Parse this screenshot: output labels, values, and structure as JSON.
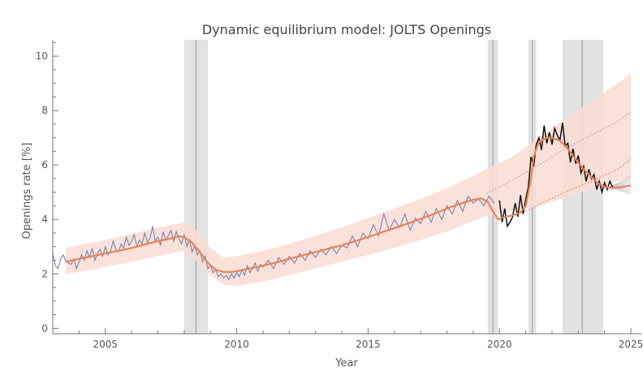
{
  "chart_data": {
    "type": "line",
    "title": "Dynamic equilibrium model: JOLTS Openings",
    "xlabel": "Year",
    "ylabel": "Openings rate [%]",
    "xlim": [
      2003.0,
      2025.4
    ],
    "ylim": [
      -0.2,
      10.6
    ],
    "x_ticks": [
      2005,
      2010,
      2015,
      2020,
      2025
    ],
    "y_ticks": [
      0,
      2,
      4,
      6,
      8,
      10
    ],
    "grid": false,
    "legend": "none",
    "colors": {
      "observed_pre2019": "#6a7dab",
      "observed_recent": "#111111",
      "model": "#e8825a",
      "band": "#f9dcd2",
      "recession_shading": "#e2e2e2",
      "recession_line": "#9a9a9a",
      "trend_dotted_upper": "#b6a7a0",
      "trend_dotted_lower": "#e8825a",
      "forecast_fan": "#999999"
    },
    "recession_bands": [
      {
        "start": 2008.0,
        "end": 2008.9,
        "center": 2008.45
      },
      {
        "start": 2019.55,
        "end": 2019.95,
        "center": 2019.75
      },
      {
        "start": 2021.1,
        "end": 2021.4,
        "center": 2021.25
      },
      {
        "start": 2022.4,
        "end": 2023.95,
        "center": 2023.15
      }
    ],
    "series": [
      {
        "role": "model",
        "x": [
          2003.5,
          2004.0,
          2004.5,
          2005.0,
          2005.5,
          2006.0,
          2006.5,
          2007.0,
          2007.5,
          2007.8,
          2008.0,
          2008.3,
          2008.6,
          2008.9,
          2009.2,
          2009.5,
          2009.8,
          2010.0,
          2010.5,
          2011.0,
          2011.5,
          2012.0,
          2012.5,
          2013.0,
          2013.5,
          2014.0,
          2014.5,
          2015.0,
          2015.5,
          2016.0,
          2016.5,
          2017.0,
          2017.5,
          2018.0,
          2018.5,
          2019.0,
          2019.3,
          2019.55,
          2019.75,
          2019.95,
          2020.2,
          2020.5,
          2020.8,
          2021.0,
          2021.2,
          2021.3,
          2021.5,
          2021.8,
          2022.0,
          2022.3,
          2022.6,
          2022.9,
          2023.2,
          2023.5,
          2023.8,
          2024.0,
          2024.3,
          2024.6,
          2025.0
        ],
        "y": [
          2.45,
          2.55,
          2.65,
          2.75,
          2.85,
          2.95,
          3.08,
          3.2,
          3.3,
          3.38,
          3.35,
          3.15,
          2.8,
          2.4,
          2.15,
          2.07,
          2.07,
          2.1,
          2.2,
          2.3,
          2.42,
          2.55,
          2.68,
          2.8,
          2.93,
          3.05,
          3.2,
          3.35,
          3.52,
          3.68,
          3.85,
          4.02,
          4.2,
          4.4,
          4.58,
          4.72,
          4.78,
          4.65,
          4.3,
          4.0,
          4.1,
          4.15,
          4.25,
          4.5,
          5.5,
          6.3,
          6.85,
          7.0,
          7.0,
          6.9,
          6.6,
          6.2,
          5.85,
          5.55,
          5.3,
          5.2,
          5.15,
          5.18,
          5.25
        ]
      },
      {
        "role": "band_upper",
        "x": [
          2003.5,
          2004.5,
          2005.5,
          2006.5,
          2007.5,
          2008.0,
          2008.5,
          2009.0,
          2009.5,
          2010.0,
          2011.0,
          2012.0,
          2013.0,
          2014.0,
          2015.0,
          2016.0,
          2017.0,
          2018.0,
          2019.0,
          2019.6,
          2020.5,
          2021.5,
          2022.5,
          2023.5,
          2024.5,
          2025.0
        ],
        "y": [
          2.95,
          3.15,
          3.35,
          3.58,
          3.8,
          3.88,
          3.6,
          2.95,
          2.6,
          2.65,
          2.85,
          3.1,
          3.4,
          3.7,
          4.05,
          4.4,
          4.75,
          5.15,
          5.6,
          5.9,
          6.3,
          7.0,
          7.7,
          8.35,
          9.0,
          9.35
        ]
      },
      {
        "role": "band_lower",
        "x": [
          2003.5,
          2004.5,
          2005.5,
          2006.5,
          2007.5,
          2008.0,
          2008.5,
          2009.0,
          2009.5,
          2010.0,
          2011.0,
          2012.0,
          2013.0,
          2014.0,
          2015.0,
          2016.0,
          2017.0,
          2018.0,
          2019.0,
          2019.6,
          2020.5,
          2021.5,
          2022.5,
          2023.5,
          2024.5,
          2025.0
        ],
        "y": [
          2.0,
          2.15,
          2.35,
          2.55,
          2.75,
          2.85,
          2.45,
          1.95,
          1.6,
          1.55,
          1.72,
          1.95,
          2.2,
          2.45,
          2.7,
          2.95,
          3.25,
          3.55,
          3.95,
          4.15,
          4.3,
          4.5,
          4.8,
          5.1,
          5.4,
          5.55
        ]
      },
      {
        "role": "trend_dotted_upper",
        "x": [
          2019.5,
          2020.5,
          2021.5,
          2022.5,
          2023.5,
          2024.5,
          2025.0
        ],
        "y": [
          4.95,
          5.45,
          6.0,
          6.6,
          7.1,
          7.6,
          7.95
        ]
      },
      {
        "role": "trend_dotted_lower",
        "x": [
          2021.0,
          2021.5,
          2022.5,
          2023.5,
          2024.5,
          2025.0
        ],
        "y": [
          4.3,
          4.55,
          5.0,
          5.4,
          5.85,
          6.2
        ]
      },
      {
        "role": "observed_pre2019",
        "x": [
          2003.0,
          2003.1,
          2003.2,
          2003.3,
          2003.4,
          2003.5,
          2003.6,
          2003.7,
          2003.8,
          2003.9,
          2004.0,
          2004.1,
          2004.2,
          2004.3,
          2004.4,
          2004.5,
          2004.6,
          2004.7,
          2004.8,
          2004.9,
          2005.0,
          2005.1,
          2005.2,
          2005.3,
          2005.4,
          2005.5,
          2005.6,
          2005.7,
          2005.8,
          2005.9,
          2006.0,
          2006.1,
          2006.2,
          2006.3,
          2006.4,
          2006.5,
          2006.6,
          2006.7,
          2006.8,
          2006.9,
          2007.0,
          2007.1,
          2007.2,
          2007.3,
          2007.4,
          2007.5,
          2007.6,
          2007.7,
          2007.8,
          2007.9,
          2008.0,
          2008.1,
          2008.2,
          2008.3,
          2008.4,
          2008.5,
          2008.6,
          2008.7,
          2008.8,
          2008.9,
          2009.0,
          2009.1,
          2009.2,
          2009.3,
          2009.4,
          2009.5,
          2009.6,
          2009.7,
          2009.8,
          2009.9,
          2010.0,
          2010.1,
          2010.2,
          2010.3,
          2010.4,
          2010.5,
          2010.6,
          2010.7,
          2010.8,
          2010.9,
          2011.0,
          2011.2,
          2011.4,
          2011.6,
          2011.8,
          2012.0,
          2012.2,
          2012.4,
          2012.6,
          2012.8,
          2013.0,
          2013.2,
          2013.4,
          2013.6,
          2013.8,
          2014.0,
          2014.2,
          2014.4,
          2014.6,
          2014.8,
          2015.0,
          2015.2,
          2015.4,
          2015.6,
          2015.8,
          2016.0,
          2016.2,
          2016.4,
          2016.6,
          2016.8,
          2017.0,
          2017.2,
          2017.4,
          2017.6,
          2017.8,
          2018.0,
          2018.2,
          2018.4,
          2018.6,
          2018.8,
          2019.0,
          2019.2,
          2019.4,
          2019.6,
          2019.8
        ],
        "y": [
          2.75,
          2.3,
          2.2,
          2.55,
          2.7,
          2.45,
          2.4,
          2.35,
          2.55,
          2.2,
          2.45,
          2.7,
          2.5,
          2.85,
          2.6,
          2.95,
          2.5,
          2.75,
          2.9,
          2.65,
          3.0,
          2.7,
          2.85,
          3.2,
          2.9,
          2.8,
          3.1,
          2.95,
          3.35,
          3.05,
          3.2,
          3.45,
          3.0,
          3.25,
          3.1,
          3.5,
          3.15,
          3.3,
          3.75,
          3.2,
          3.35,
          3.05,
          3.55,
          3.25,
          3.4,
          3.6,
          3.2,
          3.55,
          3.3,
          3.1,
          3.45,
          3.0,
          3.25,
          2.8,
          3.05,
          2.7,
          2.85,
          2.45,
          2.65,
          2.2,
          2.3,
          2.05,
          2.15,
          1.9,
          2.0,
          1.85,
          1.95,
          1.8,
          2.0,
          1.85,
          2.05,
          1.9,
          2.15,
          1.95,
          2.3,
          2.05,
          2.2,
          2.4,
          2.1,
          2.35,
          2.25,
          2.5,
          2.2,
          2.6,
          2.35,
          2.65,
          2.4,
          2.75,
          2.5,
          2.85,
          2.6,
          2.9,
          2.7,
          3.0,
          2.75,
          3.05,
          2.95,
          3.4,
          3.0,
          3.5,
          3.3,
          3.8,
          3.4,
          4.2,
          3.6,
          4.0,
          3.7,
          4.2,
          3.6,
          4.05,
          3.85,
          4.3,
          3.9,
          4.4,
          4.0,
          4.5,
          4.2,
          4.7,
          4.3,
          4.85,
          4.6,
          4.75,
          4.5,
          4.85,
          4.6
        ]
      },
      {
        "role": "observed_recent",
        "x": [
          2020.0,
          2020.1,
          2020.2,
          2020.3,
          2020.4,
          2020.5,
          2020.6,
          2020.7,
          2020.8,
          2020.9,
          2021.0,
          2021.1,
          2021.2,
          2021.3,
          2021.4,
          2021.5,
          2021.6,
          2021.7,
          2021.8,
          2021.9,
          2022.0,
          2022.1,
          2022.2,
          2022.3,
          2022.4,
          2022.5,
          2022.6,
          2022.7,
          2022.8,
          2022.9,
          2023.0,
          2023.1,
          2023.2,
          2023.3,
          2023.4,
          2023.5,
          2023.6,
          2023.7,
          2023.8,
          2023.9,
          2024.0,
          2024.1,
          2024.2,
          2024.3
        ],
        "y": [
          4.7,
          3.9,
          4.4,
          3.75,
          3.9,
          4.1,
          4.6,
          4.1,
          4.9,
          4.2,
          4.75,
          5.2,
          6.3,
          5.95,
          6.75,
          7.0,
          6.55,
          7.45,
          6.8,
          7.2,
          6.75,
          7.35,
          7.1,
          6.9,
          7.55,
          6.7,
          6.8,
          6.1,
          6.6,
          6.05,
          6.35,
          5.7,
          5.95,
          5.4,
          5.85,
          5.5,
          5.65,
          5.1,
          5.4,
          5.0,
          5.35,
          5.1,
          5.4,
          5.2
        ]
      },
      {
        "role": "forecast_fan_center",
        "x": [
          2024.2,
          2024.4,
          2024.6,
          2024.8,
          2025.0
        ],
        "y": [
          5.2,
          5.2,
          5.22,
          5.24,
          5.27
        ]
      }
    ]
  }
}
